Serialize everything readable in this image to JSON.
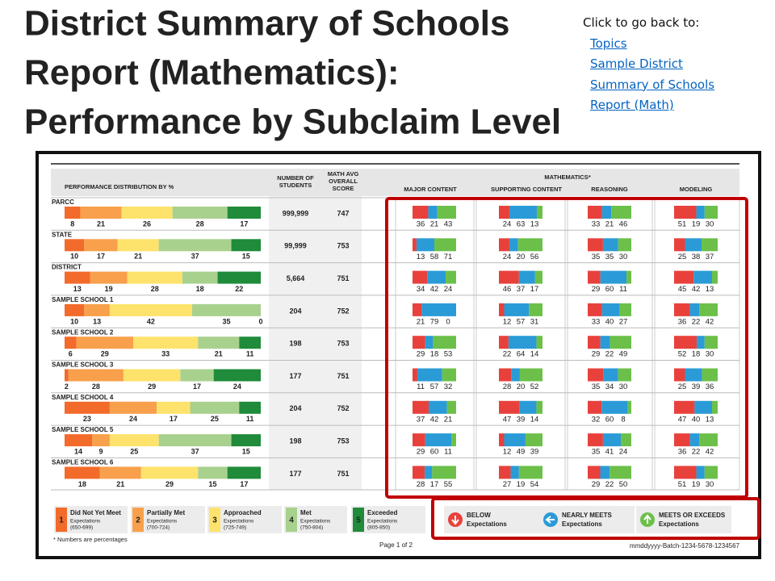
{
  "title_lines": [
    "District Summary of Schools",
    "Report (Mathematics):",
    "Performance by Subclaim Level"
  ],
  "nav": {
    "prompt": "Click to go back to:",
    "links": [
      "Topics",
      "Sample District Summary of Schools Report (Math)"
    ]
  },
  "report": {
    "headers": {
      "distribution": "PERFORMANCE DISTRIBUTION BY %",
      "students": [
        "NUMBER OF",
        "STUDENTS"
      ],
      "score": [
        "MATH AVG",
        "OVERALL",
        "SCORE"
      ],
      "subject": "MATHEMATICS*",
      "subclaims": [
        "MAJOR CONTENT",
        "SUPPORTING CONTENT",
        "REASONING",
        "MODELING"
      ]
    },
    "rows": [
      {
        "name": "PARCC",
        "distribution": [
          8,
          21,
          26,
          28,
          17
        ],
        "students": "999,999",
        "score": 747,
        "subclaims": [
          [
            36,
            21,
            43
          ],
          [
            24,
            63,
            13
          ],
          [
            33,
            21,
            46
          ],
          [
            51,
            19,
            30
          ]
        ]
      },
      {
        "name": "STATE",
        "distribution": [
          10,
          17,
          21,
          37,
          15
        ],
        "students": "99,999",
        "score": 753,
        "subclaims": [
          [
            13,
            58,
            71
          ],
          [
            24,
            20,
            56
          ],
          [
            35,
            35,
            30
          ],
          [
            25,
            38,
            37
          ]
        ]
      },
      {
        "name": "DISTRICT",
        "distribution": [
          13,
          19,
          28,
          18,
          22
        ],
        "students": "5,664",
        "score": 751,
        "subclaims": [
          [
            34,
            42,
            24
          ],
          [
            46,
            37,
            17
          ],
          [
            29,
            60,
            11
          ],
          [
            45,
            42,
            13
          ]
        ]
      },
      {
        "name": "SAMPLE SCHOOL 1",
        "distribution": [
          10,
          13,
          42,
          35,
          0
        ],
        "students": "204",
        "score": 752,
        "subclaims": [
          [
            21,
            79,
            0
          ],
          [
            12,
            57,
            31
          ],
          [
            33,
            40,
            27
          ],
          [
            36,
            22,
            42
          ]
        ]
      },
      {
        "name": "SAMPLE SCHOOL 2",
        "distribution": [
          6,
          29,
          33,
          21,
          11
        ],
        "students": "198",
        "score": 753,
        "subclaims": [
          [
            29,
            18,
            53
          ],
          [
            22,
            64,
            14
          ],
          [
            29,
            22,
            49
          ],
          [
            52,
            18,
            30
          ]
        ]
      },
      {
        "name": "SAMPLE SCHOOL 3",
        "distribution": [
          2,
          28,
          29,
          17,
          24
        ],
        "students": "177",
        "score": 751,
        "subclaims": [
          [
            11,
            57,
            32
          ],
          [
            28,
            20,
            52
          ],
          [
            35,
            34,
            30
          ],
          [
            25,
            39,
            36
          ]
        ]
      },
      {
        "name": "SAMPLE SCHOOL 4",
        "distribution": [
          23,
          24,
          17,
          25,
          11
        ],
        "students": "204",
        "score": 752,
        "subclaims": [
          [
            37,
            42,
            21
          ],
          [
            47,
            39,
            14
          ],
          [
            32,
            60,
            8
          ],
          [
            47,
            40,
            13
          ]
        ]
      },
      {
        "name": "SAMPLE SCHOOL 5",
        "distribution": [
          14,
          9,
          25,
          37,
          15
        ],
        "students": "198",
        "score": 753,
        "subclaims": [
          [
            29,
            60,
            11
          ],
          [
            12,
            49,
            39
          ],
          [
            35,
            41,
            24
          ],
          [
            36,
            22,
            42
          ]
        ]
      },
      {
        "name": "SAMPLE SCHOOL 6",
        "distribution": [
          18,
          21,
          29,
          15,
          17
        ],
        "students": "177",
        "score": 751,
        "subclaims": [
          [
            28,
            17,
            55
          ],
          [
            27,
            19,
            54
          ],
          [
            29,
            22,
            50
          ],
          [
            51,
            19,
            30
          ]
        ]
      }
    ],
    "levels": [
      {
        "number": 1,
        "name": "Did Not Yet Meet",
        "note": "Expectations",
        "range": "(650-699)",
        "color": "#f26b2a"
      },
      {
        "number": 2,
        "name": "Partially Met",
        "note": "Expectations",
        "range": "(700-724)",
        "color": "#f8a04b"
      },
      {
        "number": 3,
        "name": "Approached",
        "note": "Expectations",
        "range": "(725-749)",
        "color": "#fde36c"
      },
      {
        "number": 4,
        "name": "Met",
        "note": "Expectations",
        "range": "(750-804)",
        "color": "#a9d18e"
      },
      {
        "number": 5,
        "name": "Exceeded",
        "note": "Expectations",
        "range": "(805-850)",
        "color": "#1f8b3b"
      }
    ],
    "indicators": [
      {
        "name": "BELOW",
        "note": "Expectations",
        "color": "#e8413c"
      },
      {
        "name": "NEARLY MEETS",
        "note": "Expectations",
        "color": "#2a9bd7"
      },
      {
        "name": "MEETS OR EXCEEDS",
        "note": "Expectations",
        "color": "#6cc04a"
      }
    ],
    "footnote": "* Numbers are percentages",
    "page": "Page 1 of 2",
    "batch": "mmddyyyy-Batch-1234-5678-1234567"
  }
}
